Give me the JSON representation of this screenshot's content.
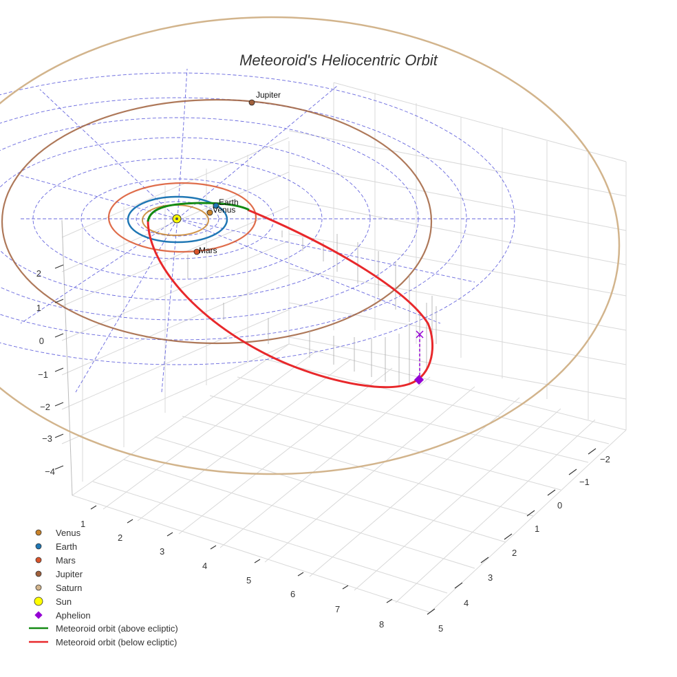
{
  "chart_data": {
    "type": "line",
    "title": "Meteoroid's Heliocentric Orbit",
    "colors": {
      "venus": "#c8822a",
      "earth": "#1f77b4",
      "mars": "#d9542b",
      "jupiter": "#a0603c",
      "saturn": "#d2b48c",
      "sun": "#ffff00",
      "aphelion": "#9400d3",
      "orbit_above": "#138a13",
      "orbit_below": "#e8282b",
      "grid_ecliptic": "#4b4bd8"
    },
    "tick_labels": {
      "left": [
        "2",
        "1",
        "0",
        "−1",
        "−2",
        "−3",
        "−4"
      ],
      "bottom": [
        "1",
        "2",
        "3",
        "4",
        "5",
        "6",
        "7",
        "8"
      ],
      "right": [
        "−2",
        "−1",
        "0",
        "1",
        "2",
        "3",
        "4",
        "5"
      ]
    },
    "planet_labels": {
      "earth": "Earth",
      "venus": "Venus",
      "mars": "Mars",
      "jupiter": "Jupiter"
    },
    "legend": [
      {
        "label": "Venus",
        "marker": "circle",
        "color": "#c8822a"
      },
      {
        "label": "Earth",
        "marker": "circle",
        "color": "#1f77b4"
      },
      {
        "label": "Mars",
        "marker": "circle",
        "color": "#d9542b"
      },
      {
        "label": "Jupiter",
        "marker": "circle",
        "color": "#a0603c"
      },
      {
        "label": "Saturn",
        "marker": "circle",
        "color": "#d2b48c"
      },
      {
        "label": "Sun",
        "marker": "big-circle",
        "color": "#ffff00"
      },
      {
        "label": "Aphelion",
        "marker": "diamond",
        "color": "#9400d3"
      },
      {
        "label": "Meteoroid orbit (above ecliptic)",
        "marker": "line",
        "color": "#138a13"
      },
      {
        "label": "Meteoroid orbit (below ecliptic)",
        "marker": "line",
        "color": "#e8282b"
      }
    ],
    "grid": true
  }
}
